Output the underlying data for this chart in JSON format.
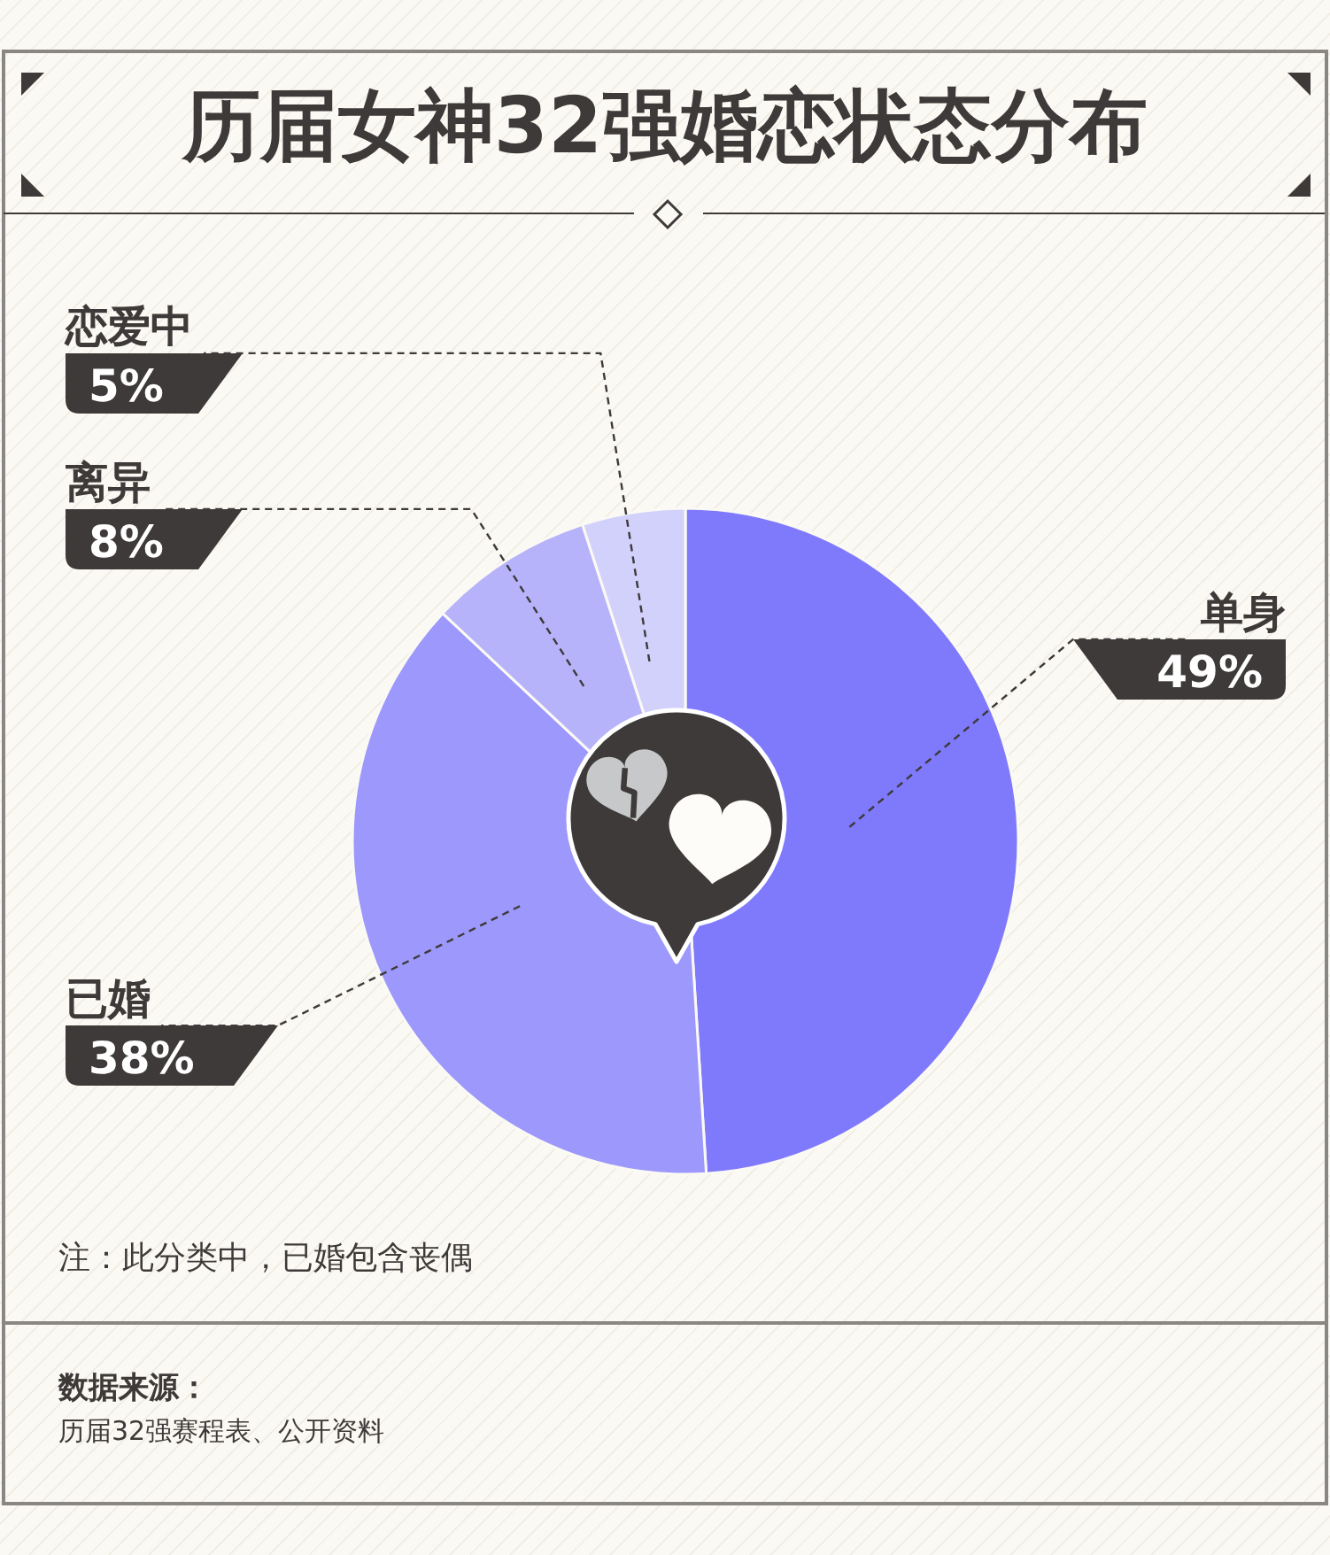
{
  "chart_data": {
    "type": "pie",
    "title": "历届女神32强婚恋状态分布",
    "categories": [
      "单身",
      "已婚",
      "离异",
      "恋爱中"
    ],
    "values": [
      49,
      38,
      8,
      5
    ],
    "colors": [
      "#7f7afc",
      "#9c98fc",
      "#b6b3fb",
      "#d2d1fc"
    ],
    "value_labels": [
      "49%",
      "38%",
      "8%",
      "5%"
    ],
    "annotations": [
      "注：此分类中，已婚包含丧偶",
      "数据来源：",
      "历届32强赛程表、公开资料"
    ]
  }
}
